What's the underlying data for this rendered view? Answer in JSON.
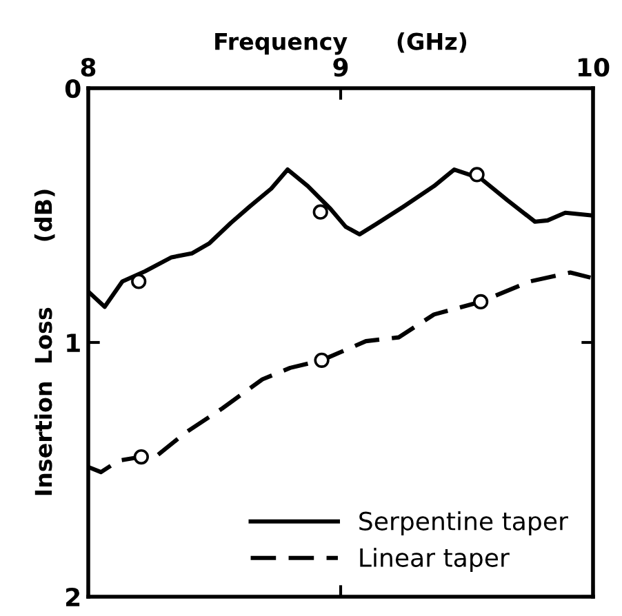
{
  "chart_data": {
    "type": "line",
    "xlabel": "Frequency      (GHz)",
    "ylabel": "Insertion  Loss        (dB)",
    "xlim": [
      8,
      10
    ],
    "xticks": [
      8,
      9,
      10
    ],
    "ylim": [
      2,
      0
    ],
    "yticks": [
      0,
      1,
      2
    ],
    "grid": false,
    "legend": "bottom right",
    "marker": "none",
    "series": [
      {
        "name": "Serpentine taper",
        "color": "#000000",
        "line_style": "solid",
        "x": [
          8.0,
          8.065,
          8.135,
          8.225,
          8.33,
          8.41,
          8.48,
          8.565,
          8.64,
          8.725,
          8.79,
          8.87,
          8.96,
          9.02,
          9.075,
          9.14,
          9.25,
          9.37,
          9.45,
          9.555,
          9.66,
          9.77,
          9.82,
          9.89,
          9.99
        ],
        "values": [
          0.8,
          0.86,
          0.76,
          0.72,
          0.665,
          0.65,
          0.61,
          0.53,
          0.465,
          0.395,
          0.32,
          0.385,
          0.475,
          0.545,
          0.575,
          0.535,
          0.465,
          0.385,
          0.32,
          0.355,
          0.44,
          0.525,
          0.52,
          0.49,
          0.5
        ]
      },
      {
        "name": "Linear taper",
        "color": "#000000",
        "line_style": "dashed",
        "x": [
          8.0,
          8.05,
          8.12,
          8.21,
          8.26,
          8.385,
          8.53,
          8.69,
          8.8,
          8.925,
          9.1,
          9.23,
          9.37,
          9.555,
          9.75,
          9.91,
          9.99
        ],
        "values": [
          1.49,
          1.51,
          1.465,
          1.45,
          1.455,
          1.355,
          1.26,
          1.145,
          1.1,
          1.07,
          0.995,
          0.98,
          0.89,
          0.84,
          0.76,
          0.725,
          0.745
        ]
      },
      {
        "type": "scatter",
        "marker": "circle",
        "color": "#000000",
        "x": [
          8.2,
          8.92,
          9.54
        ],
        "values": [
          0.76,
          0.487,
          0.34
        ]
      },
      {
        "type": "scatter",
        "marker": "circle",
        "color": "#000000",
        "x": [
          8.21,
          8.925,
          9.555
        ],
        "values": [
          1.45,
          1.07,
          0.84
        ]
      }
    ]
  }
}
